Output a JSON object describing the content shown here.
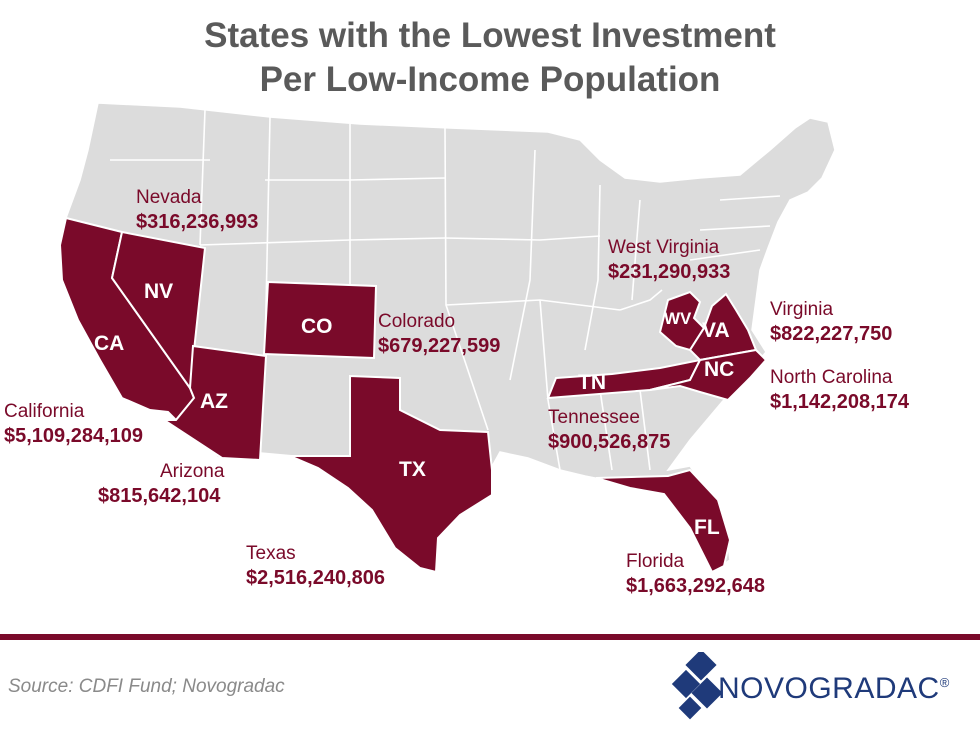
{
  "title": {
    "line1": "States with the Lowest Investment",
    "line2": "Per Low-Income Population"
  },
  "colors": {
    "highlight": "#7a0a2a",
    "base_map": "#dcdcdc",
    "title": "#5a5a5a",
    "logo": "#1f3a7a"
  },
  "states": [
    {
      "abbr": "CA",
      "name": "California",
      "amount": "$5,109,284,109"
    },
    {
      "abbr": "NV",
      "name": "Nevada",
      "amount": "$316,236,993"
    },
    {
      "abbr": "AZ",
      "name": "Arizona",
      "amount": "$815,642,104"
    },
    {
      "abbr": "CO",
      "name": "Colorado",
      "amount": "$679,227,599"
    },
    {
      "abbr": "TX",
      "name": "Texas",
      "amount": "$2,516,240,806"
    },
    {
      "abbr": "TN",
      "name": "Tennessee",
      "amount": "$900,526,875"
    },
    {
      "abbr": "WV",
      "name": "West Virginia",
      "amount": "$231,290,933"
    },
    {
      "abbr": "VA",
      "name": "Virginia",
      "amount": "$822,227,750"
    },
    {
      "abbr": "NC",
      "name": "North Carolina",
      "amount": "$1,142,208,174"
    },
    {
      "abbr": "FL",
      "name": "Florida",
      "amount": "$1,663,292,648"
    }
  ],
  "footer": {
    "source": "Source: CDFI Fund; Novogradac",
    "logo_text": "NOVOGRADAC",
    "logo_mark": "®",
    "logo_icon": "diamond-logo-icon"
  }
}
